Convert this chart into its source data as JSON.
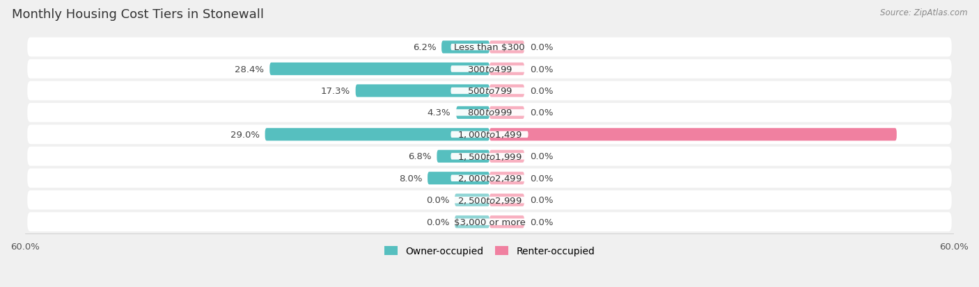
{
  "title": "Monthly Housing Cost Tiers in Stonewall",
  "source": "Source: ZipAtlas.com",
  "categories": [
    "Less than $300",
    "$300 to $499",
    "$500 to $799",
    "$800 to $999",
    "$1,000 to $1,499",
    "$1,500 to $1,999",
    "$2,000 to $2,499",
    "$2,500 to $2,999",
    "$3,000 or more"
  ],
  "owner_values": [
    6.2,
    28.4,
    17.3,
    4.3,
    29.0,
    6.8,
    8.0,
    0.0,
    0.0
  ],
  "renter_values": [
    0.0,
    0.0,
    0.0,
    0.0,
    52.6,
    0.0,
    0.0,
    0.0,
    0.0
  ],
  "owner_color": "#56BFBF",
  "renter_color": "#F080A0",
  "owner_light_color": "#90D5D5",
  "renter_light_color": "#F8B0C0",
  "row_bg_color": "#eeeeee",
  "background_color": "#f0f0f0",
  "xlim": 60.0,
  "bar_height": 0.58,
  "stub_size": 4.5,
  "title_fontsize": 13,
  "label_fontsize": 9.5,
  "value_fontsize": 9.5,
  "axis_fontsize": 9.5,
  "legend_fontsize": 10
}
